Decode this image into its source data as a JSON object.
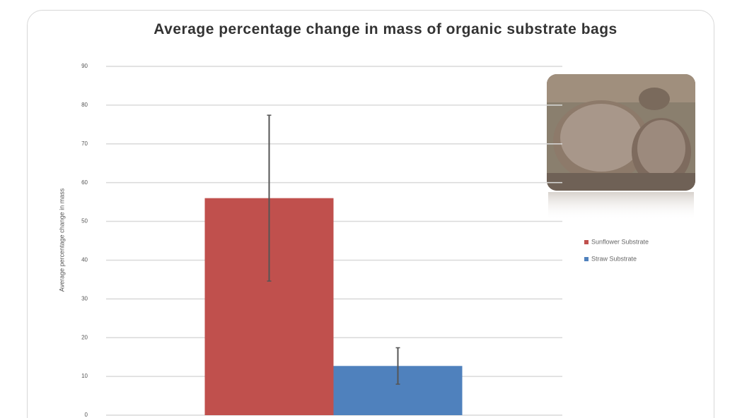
{
  "chart_data": {
    "type": "bar",
    "title": "Average percentage change in mass of organic substrate bags",
    "y_label": "Average percentage change in mass",
    "categories": [
      null
    ],
    "series": [
      {
        "name": "Sunflower Substrate",
        "color": "#c0504d",
        "values": [
          56
        ],
        "errors": [
          21.4
        ]
      },
      {
        "name": "Straw Substrate",
        "color": "#4f81bd",
        "values": [
          12.7
        ],
        "errors": [
          4.7
        ]
      }
    ],
    "ylim": [
      0,
      90
    ],
    "yticks": [
      0,
      10,
      20,
      30,
      40,
      50,
      60,
      70,
      80,
      90
    ],
    "grid": true,
    "legend": "right"
  }
}
